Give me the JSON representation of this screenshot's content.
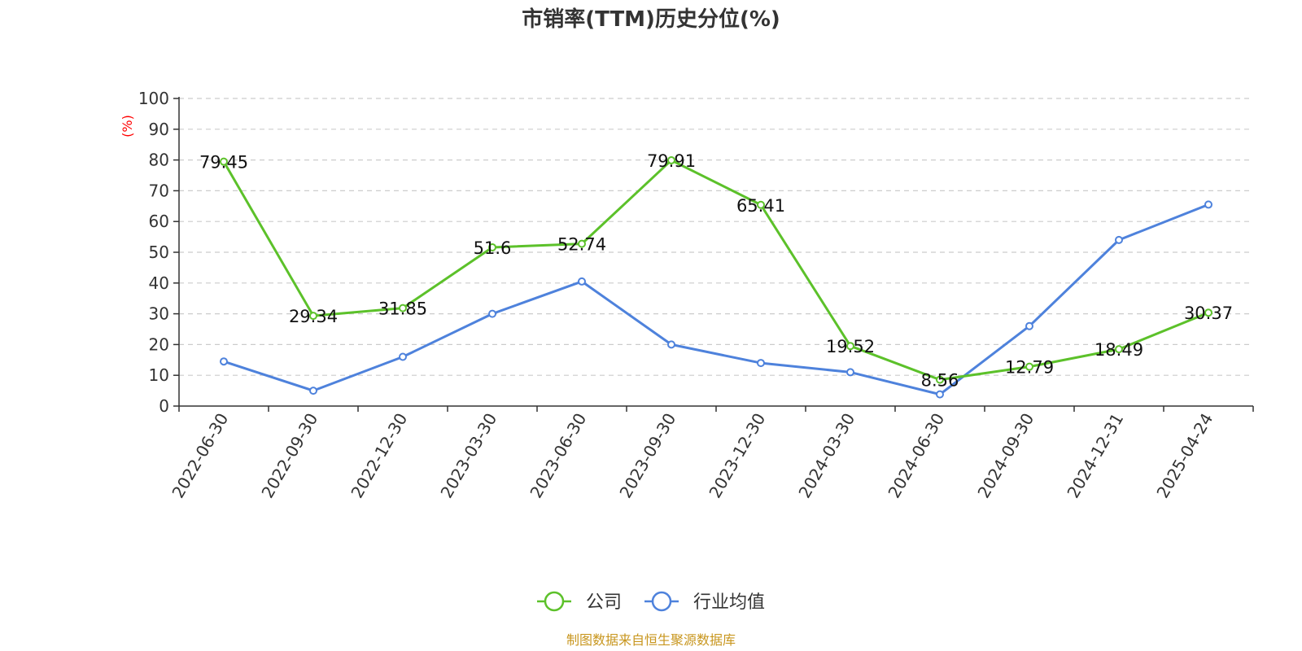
{
  "chart_data": {
    "type": "line",
    "title": "市销率(TTM)历史分位(%)",
    "ylabel": "(%)",
    "ylabel_color": "#ff0000",
    "ylim": [
      0,
      100
    ],
    "yticks": [
      0,
      10,
      20,
      30,
      40,
      50,
      60,
      70,
      80,
      90,
      100
    ],
    "grid": true,
    "legend_position": "bottom-center",
    "categories": [
      "2022-06-30",
      "2022-09-30",
      "2022-12-30",
      "2023-03-30",
      "2023-06-30",
      "2023-09-30",
      "2023-12-30",
      "2024-03-30",
      "2024-06-30",
      "2024-09-30",
      "2024-12-31",
      "2025-04-24"
    ],
    "series": [
      {
        "name": "公司",
        "color": "#5cc12a",
        "values": [
          79.45,
          29.34,
          31.85,
          51.6,
          52.74,
          79.91,
          65.41,
          19.52,
          8.56,
          12.79,
          18.49,
          30.37
        ],
        "data_labels": [
          "79.45",
          "29.34",
          "31.85",
          "51.6",
          "52.74",
          "79.91",
          "65.41",
          "19.52",
          "8.56",
          "12.79",
          "18.49",
          "30.37"
        ]
      },
      {
        "name": "行业均值",
        "color": "#4e82dc",
        "values": [
          14.5,
          5.0,
          16.0,
          30.0,
          40.5,
          20.0,
          14.0,
          11.0,
          3.8,
          26.0,
          54.0,
          65.5
        ]
      }
    ]
  },
  "source": {
    "text": "制图数据来自恒生聚源数据库",
    "color": "#c8961e"
  }
}
